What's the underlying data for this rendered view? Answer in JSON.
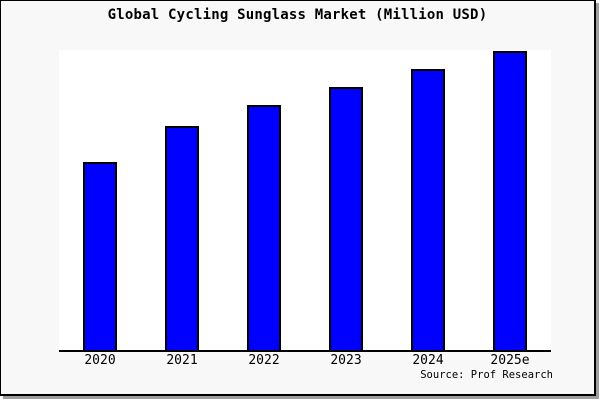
{
  "frame": {
    "canvas_bg": "#f8f8f8",
    "plot_bg": "#ffffff",
    "border_color": "#000000",
    "shadow_color": "#9e9e9e",
    "axis_color": "#000000"
  },
  "title": "Global Cycling Sunglass Market (Million USD)",
  "source_note": "Source: Prof Research",
  "chart_data": {
    "type": "bar",
    "title": "Global Cycling Sunglass Market (Million USD)",
    "categories": [
      "2020",
      "2021",
      "2022",
      "2023",
      "2024",
      "2025e"
    ],
    "values": [
      63,
      75,
      82,
      88,
      94,
      100
    ],
    "units": "relative height, 2025e = 100 (no y-axis scale or value labels shown)",
    "xlabel": "",
    "ylabel": "",
    "ylim": [
      0,
      100
    ],
    "grid": false,
    "legend": false,
    "bar_color": "#0000ff",
    "bar_border_color": "#000000",
    "annotations": [
      "Source: Prof Research"
    ]
  }
}
